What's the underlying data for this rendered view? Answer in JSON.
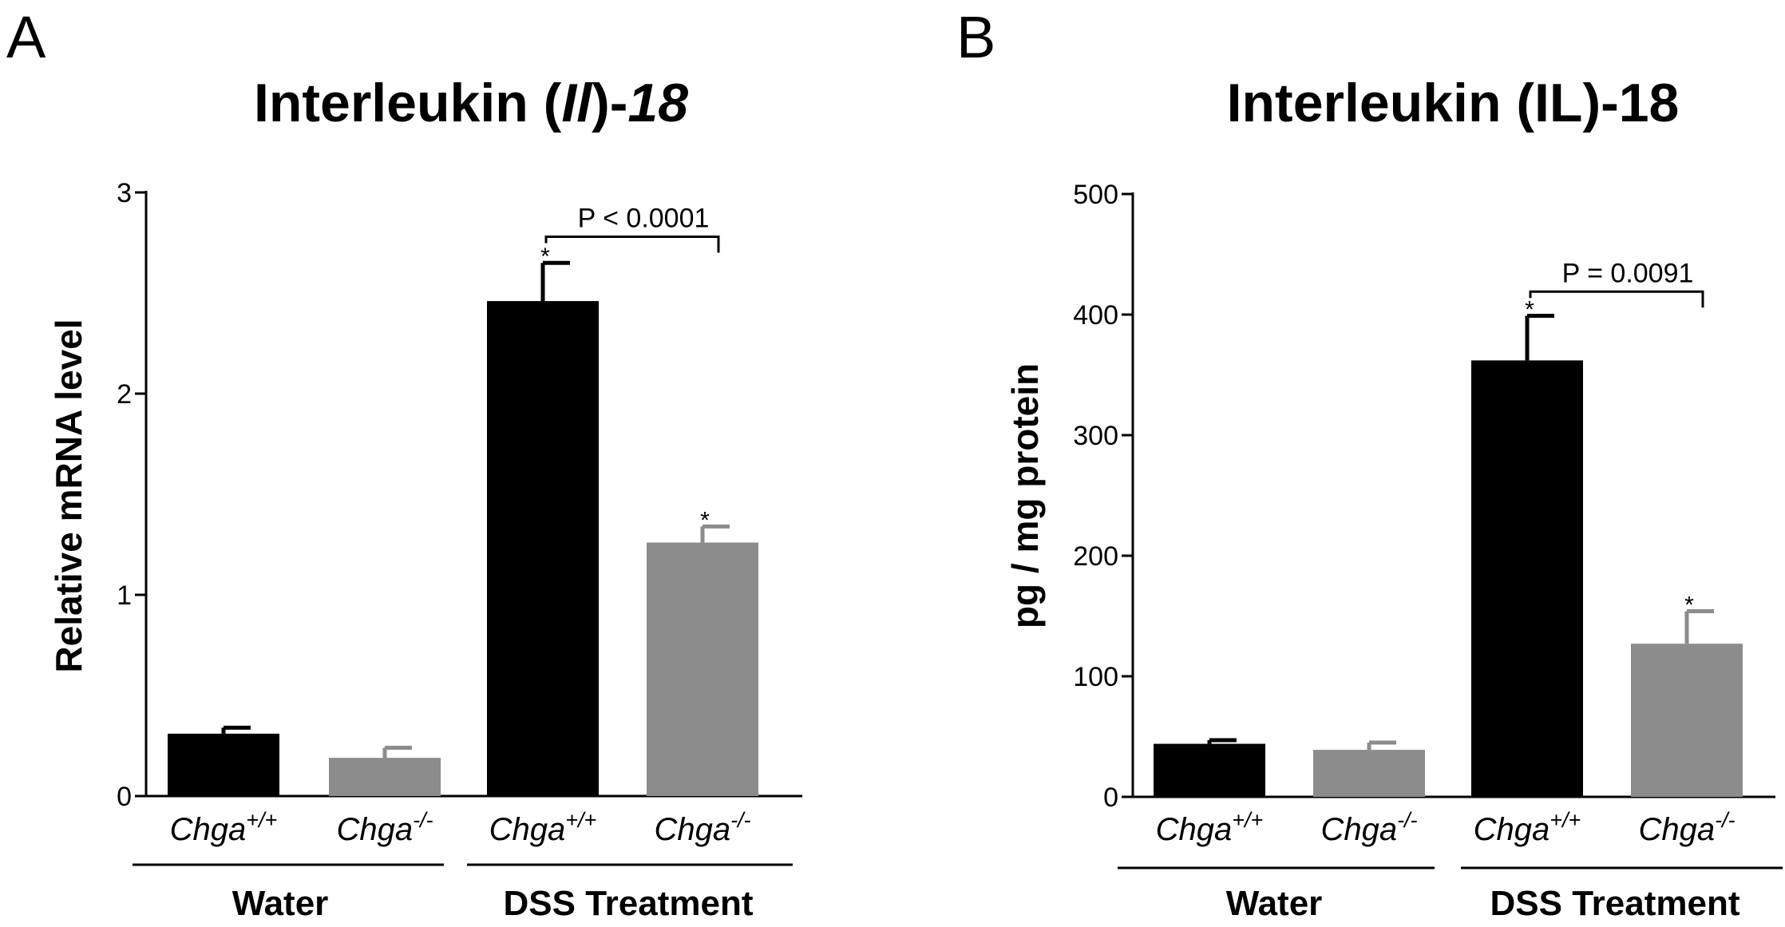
{
  "chart_data": [
    {
      "type": "bar",
      "panel": "A",
      "title_parts": [
        {
          "text": "Interleukin (",
          "italic": false
        },
        {
          "text": "Il",
          "italic": true
        },
        {
          "text": ")-",
          "italic": false
        },
        {
          "text": "18",
          "italic": true
        }
      ],
      "ylabel": "Relative mRNA level",
      "ylim": [
        0,
        3
      ],
      "yticks": [
        "0",
        "1",
        "2",
        "3"
      ],
      "ytick_values": [
        0,
        1,
        2,
        3
      ],
      "categories": [
        {
          "base": "Chga",
          "sup": "+/+"
        },
        {
          "base": "Chga",
          "sup": "-/-"
        },
        {
          "base": "Chga",
          "sup": "+/+"
        },
        {
          "base": "Chga",
          "sup": "-/-"
        }
      ],
      "values": [
        0.31,
        0.19,
        2.46,
        1.26
      ],
      "errors": [
        0.03,
        0.05,
        0.19,
        0.08
      ],
      "colors": [
        "#000000",
        "#8c8c8c",
        "#000000",
        "#8c8c8c"
      ],
      "stars": [
        "",
        "",
        "*",
        "*"
      ],
      "groups": [
        {
          "label": "Water",
          "categories": [
            0,
            1
          ]
        },
        {
          "label": "DSS Treatment",
          "categories": [
            2,
            3
          ]
        }
      ],
      "comparison": {
        "from": 2,
        "to": 3,
        "label": "P < 0.0001",
        "y": 2.78
      }
    },
    {
      "type": "bar",
      "panel": "B",
      "title_parts": [
        {
          "text": "Interleukin (IL)-18",
          "italic": false
        }
      ],
      "ylabel": "pg / mg protein",
      "ylim": [
        0,
        500
      ],
      "yticks": [
        "0",
        "100",
        "200",
        "300",
        "400",
        "500"
      ],
      "ytick_values": [
        0,
        100,
        200,
        300,
        400,
        500
      ],
      "categories": [
        {
          "base": "Chga",
          "sup": "+/+"
        },
        {
          "base": "Chga",
          "sup": "-/-"
        },
        {
          "base": "Chga",
          "sup": "+/+"
        },
        {
          "base": "Chga",
          "sup": "-/-"
        }
      ],
      "values": [
        44,
        39,
        362,
        127
      ],
      "errors": [
        3,
        6,
        37,
        27
      ],
      "colors": [
        "#000000",
        "#8c8c8c",
        "#000000",
        "#8c8c8c"
      ],
      "stars": [
        "",
        "",
        "*",
        "*"
      ],
      "groups": [
        {
          "label": "Water",
          "categories": [
            0,
            1
          ]
        },
        {
          "label": "DSS Treatment",
          "categories": [
            2,
            3
          ]
        }
      ],
      "comparison": {
        "from": 2,
        "to": 3,
        "label": "P = 0.0091",
        "y": 419
      }
    }
  ]
}
